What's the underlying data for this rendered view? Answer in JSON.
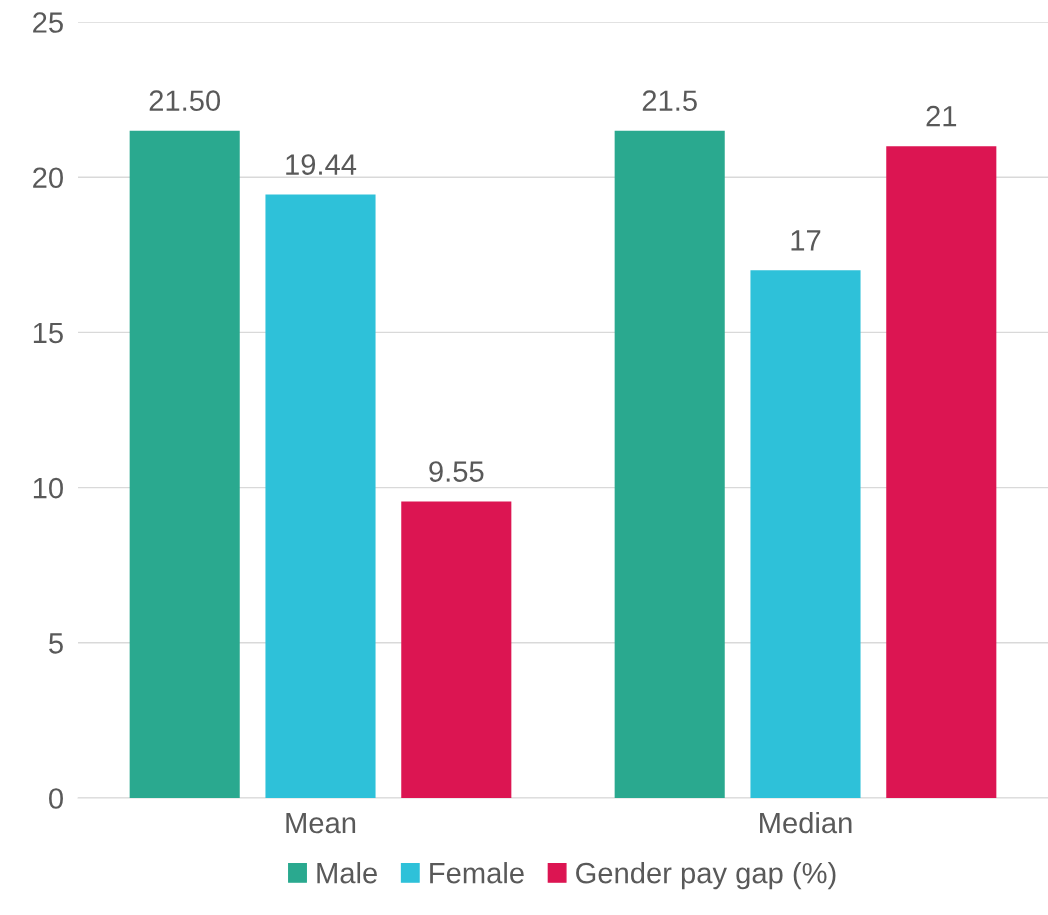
{
  "chart_data": {
    "type": "bar",
    "categories": [
      "Mean",
      "Median"
    ],
    "series": [
      {
        "name": "Male",
        "color": "#2aa98f",
        "values": [
          21.5,
          21.5
        ],
        "value_labels": [
          "21.50",
          "21.5"
        ]
      },
      {
        "name": "Female",
        "color": "#2ec1d9",
        "values": [
          19.44,
          17
        ],
        "value_labels": [
          "19.44",
          "17"
        ]
      },
      {
        "name": "Gender pay gap (%)",
        "color": "#dc1552",
        "values": [
          9.55,
          21
        ],
        "value_labels": [
          "9.55",
          "21"
        ]
      }
    ],
    "ylim": [
      0,
      25
    ],
    "yticks": [
      0,
      5,
      10,
      15,
      20,
      25
    ],
    "grid": "y",
    "legend": "bottom"
  }
}
